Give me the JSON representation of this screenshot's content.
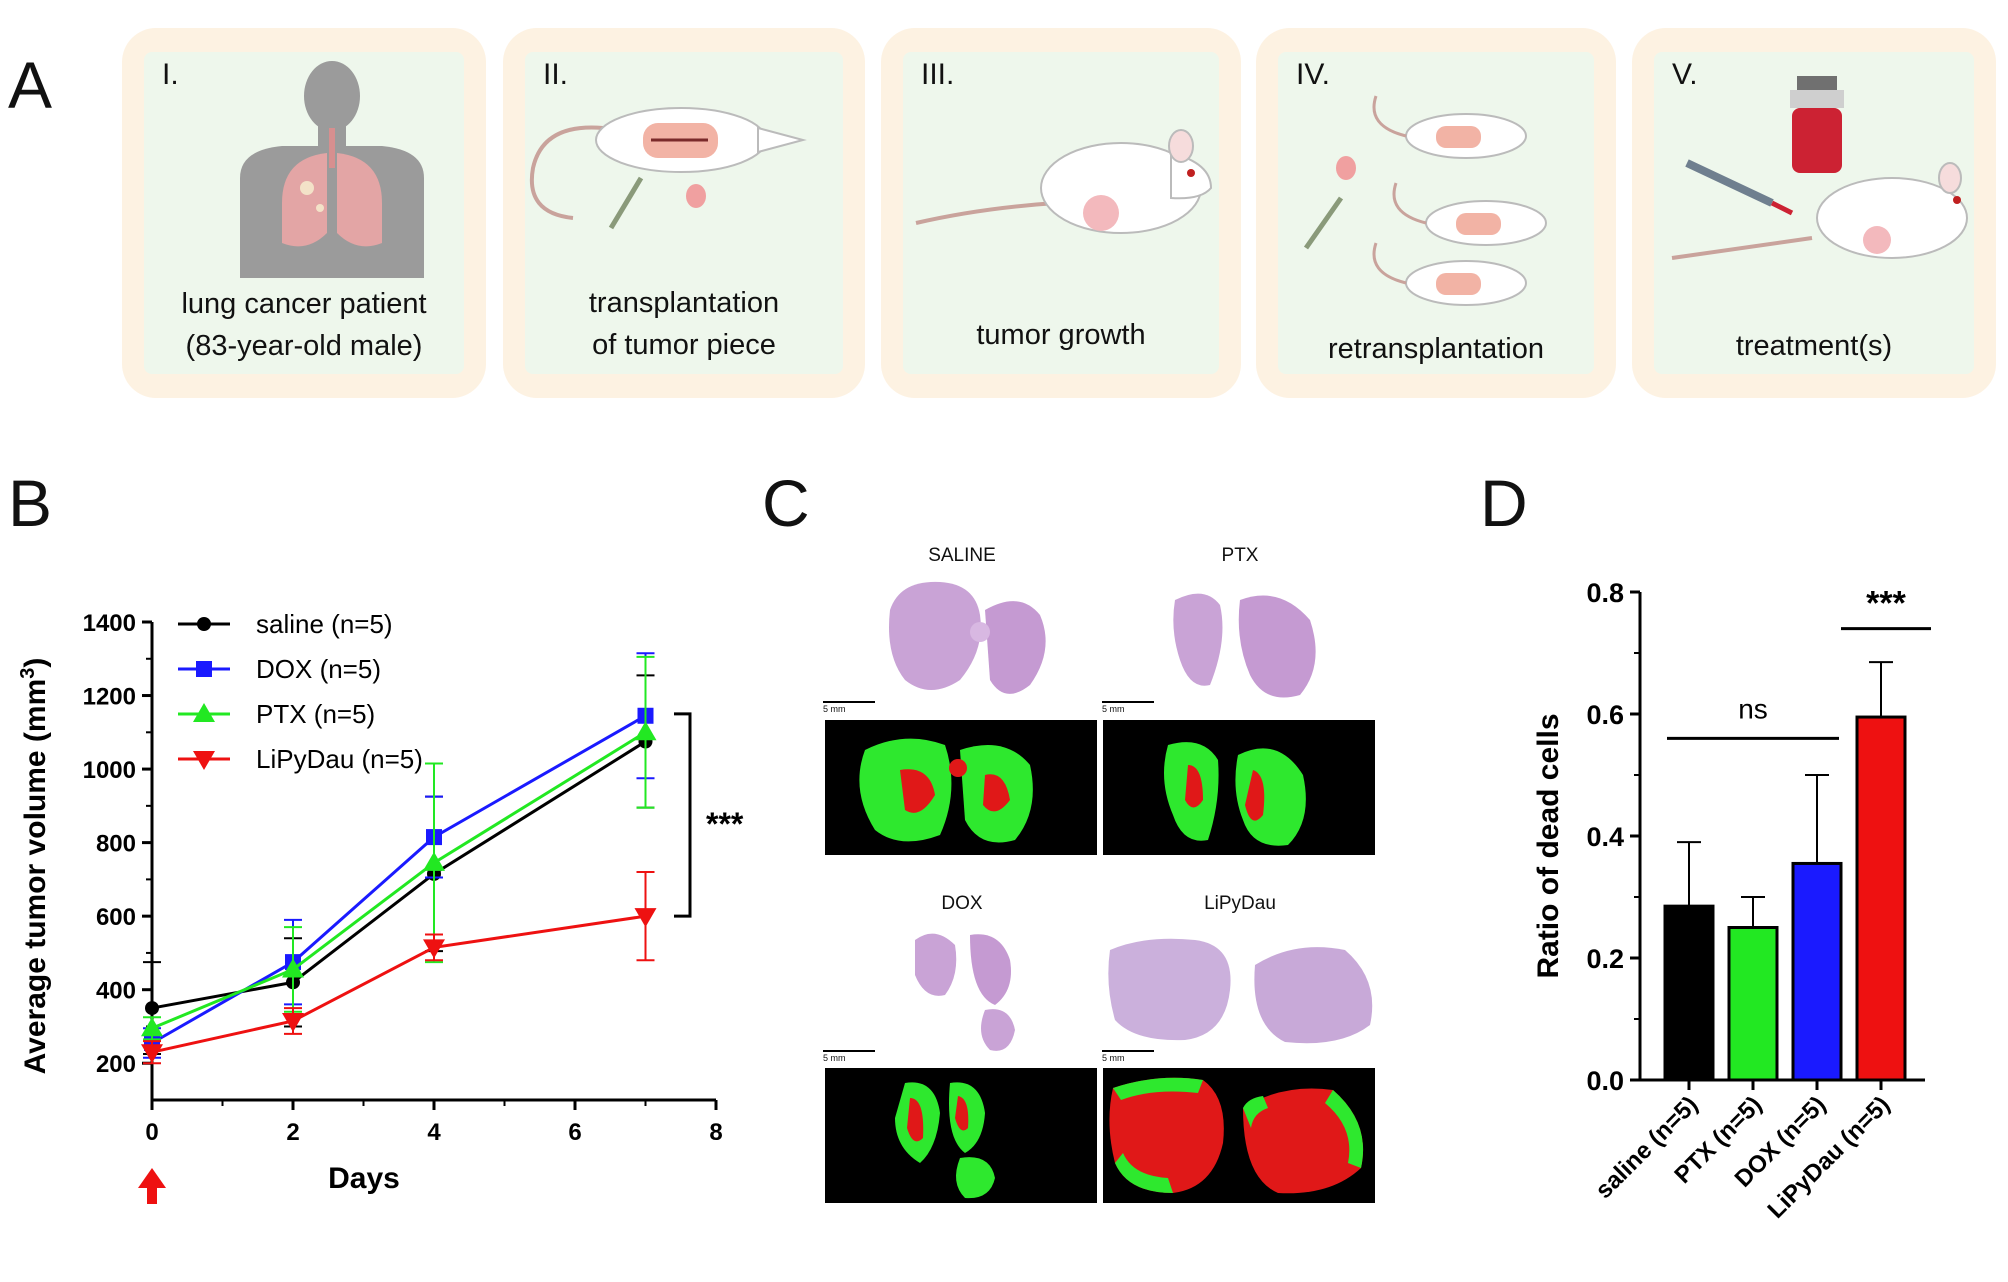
{
  "panel_labels": {
    "a": "A",
    "b": "B",
    "c": "C",
    "d": "D"
  },
  "workflow_steps": [
    {
      "numeral": "I.",
      "caption_lines": [
        "lung cancer patient",
        "(83-year-old male)"
      ]
    },
    {
      "numeral": "II.",
      "caption_lines": [
        "transplantation",
        "of tumor piece"
      ]
    },
    {
      "numeral": "III.",
      "caption_lines": [
        "tumor growth"
      ]
    },
    {
      "numeral": "IV.",
      "caption_lines": [
        "retransplantation"
      ]
    },
    {
      "numeral": "V.",
      "caption_lines": [
        "treatment(s)"
      ]
    }
  ],
  "histology": {
    "panels": [
      {
        "label": "SALINE",
        "scale": "5 mm"
      },
      {
        "label": "PTX",
        "scale": "5 mm"
      },
      {
        "label": "DOX",
        "scale": "5 mm"
      },
      {
        "label": "LiPyDau",
        "scale": "5 mm"
      }
    ]
  },
  "colors": {
    "saline": "#000000",
    "dox": "#1a1aff",
    "ptx": "#22e822",
    "lipydau": "#ee1111",
    "card": "#fdf2e2",
    "card_inner": "#eef7ec"
  },
  "chart_data": [
    {
      "type": "line",
      "panel": "B",
      "ylabel_main": "Average tumor volume (mm",
      "ylabel_sup": "3",
      "ylabel_tail": ")",
      "xlabel": "Days",
      "xlim": [
        0,
        8
      ],
      "ylim": [
        100,
        1400
      ],
      "xticks": [
        0,
        2,
        4,
        6,
        8
      ],
      "yticks": [
        200,
        400,
        600,
        800,
        1000,
        1200,
        1400
      ],
      "significance": "***",
      "start_marker": "treatment start arrow at day 0",
      "series": [
        {
          "name": "saline (n=5)",
          "color": "#000000",
          "marker": "circle",
          "x": [
            0,
            2,
            4,
            7
          ],
          "y": [
            350,
            420,
            715,
            1075
          ],
          "err": [
            125,
            120,
            210,
            180
          ]
        },
        {
          "name": "DOX (n=5)",
          "color": "#1a1aff",
          "marker": "square",
          "x": [
            0,
            2,
            4,
            7
          ],
          "y": [
            255,
            475,
            815,
            1145
          ],
          "err": [
            40,
            115,
            110,
            170
          ]
        },
        {
          "name": "PTX (n=5)",
          "color": "#22e822",
          "marker": "triangle-up",
          "x": [
            0,
            2,
            4,
            7
          ],
          "y": [
            295,
            455,
            745,
            1100
          ],
          "err": [
            30,
            115,
            270,
            205
          ]
        },
        {
          "name": "LiPyDau (n=5)",
          "color": "#ee1111",
          "marker": "triangle-down",
          "x": [
            0,
            2,
            4,
            7
          ],
          "y": [
            230,
            315,
            515,
            600
          ],
          "err": [
            30,
            35,
            35,
            120
          ]
        }
      ]
    },
    {
      "type": "bar",
      "panel": "D",
      "ylabel": "Ratio of dead cells",
      "ylim": [
        0,
        0.8
      ],
      "yticks": [
        "0.0",
        "0.2",
        "0.4",
        "0.6",
        "0.8"
      ],
      "yticks_values": [
        0,
        0.2,
        0.4,
        0.6,
        0.8
      ],
      "categories": [
        "saline (n=5)",
        "PTX (n=5)",
        "DOX (n=5)",
        "LiPyDau (n=5)"
      ],
      "values": [
        0.285,
        0.25,
        0.355,
        0.595
      ],
      "errors": [
        0.105,
        0.05,
        0.145,
        0.09
      ],
      "bar_colors": [
        "#000000",
        "#22e822",
        "#1a1aff",
        "#ee1111"
      ],
      "annotations": [
        {
          "text": "ns",
          "span": [
            0,
            2
          ]
        },
        {
          "text": "***",
          "span": [
            3,
            3
          ]
        }
      ]
    }
  ]
}
